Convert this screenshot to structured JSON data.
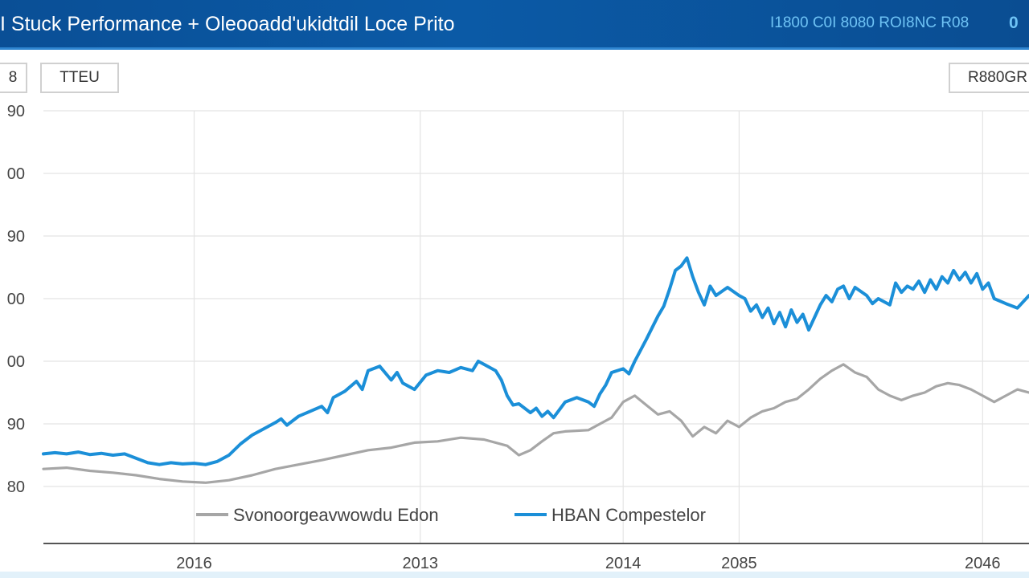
{
  "header": {
    "title": "I Stuck Performance + Oleooadd'ukidtdil Loce Prito",
    "right_link": "I1800 C0I 8080 ROI8NC R08",
    "right_icon_label": "0"
  },
  "controls": {
    "left_button": "8",
    "ticker_button": "TTEU",
    "range_button": "R880GR"
  },
  "colors": {
    "header_bg": "#0a4f96",
    "accent": "#1b8fd8",
    "benchmark": "#a6a6a6",
    "grid": "#e4e4e4"
  },
  "chart_data": {
    "type": "line",
    "title": "",
    "xlabel": "",
    "ylabel": "",
    "ylim": [
      0,
      6
    ],
    "y_ticks": [
      {
        "v": 0,
        "label": "80"
      },
      {
        "v": 1,
        "label": "90"
      },
      {
        "v": 2,
        "label": "00"
      },
      {
        "v": 3,
        "label": "00"
      },
      {
        "v": 4,
        "label": "90"
      },
      {
        "v": 5,
        "label": "00"
      },
      {
        "v": 6,
        "label": "90"
      }
    ],
    "x_ticks": [
      {
        "x": 1.3,
        "label": "2016"
      },
      {
        "x": 3.25,
        "label": "2013"
      },
      {
        "x": 5.0,
        "label": "2014"
      },
      {
        "x": 6.0,
        "label": "2085"
      },
      {
        "x": 8.1,
        "label": "2046"
      }
    ],
    "x_gridlines": [
      1.3,
      3.25,
      5.0,
      6.0,
      8.1
    ],
    "xlim": [
      0,
      8.5
    ],
    "legend_position": "bottom-center",
    "grid": true,
    "series": [
      {
        "name": "HBAN Compestelor",
        "color": "#1b8fd8",
        "points": [
          [
            0.0,
            0.52
          ],
          [
            0.1,
            0.54
          ],
          [
            0.2,
            0.52
          ],
          [
            0.3,
            0.55
          ],
          [
            0.4,
            0.51
          ],
          [
            0.5,
            0.53
          ],
          [
            0.6,
            0.5
          ],
          [
            0.7,
            0.52
          ],
          [
            0.8,
            0.45
          ],
          [
            0.9,
            0.38
          ],
          [
            1.0,
            0.35
          ],
          [
            1.1,
            0.38
          ],
          [
            1.2,
            0.36
          ],
          [
            1.3,
            0.37
          ],
          [
            1.4,
            0.35
          ],
          [
            1.5,
            0.4
          ],
          [
            1.6,
            0.5
          ],
          [
            1.7,
            0.68
          ],
          [
            1.8,
            0.82
          ],
          [
            1.9,
            0.92
          ],
          [
            2.0,
            1.02
          ],
          [
            2.05,
            1.08
          ],
          [
            2.1,
            0.98
          ],
          [
            2.2,
            1.12
          ],
          [
            2.3,
            1.2
          ],
          [
            2.4,
            1.28
          ],
          [
            2.45,
            1.18
          ],
          [
            2.5,
            1.42
          ],
          [
            2.6,
            1.52
          ],
          [
            2.7,
            1.68
          ],
          [
            2.75,
            1.55
          ],
          [
            2.8,
            1.85
          ],
          [
            2.9,
            1.92
          ],
          [
            3.0,
            1.7
          ],
          [
            3.05,
            1.82
          ],
          [
            3.1,
            1.65
          ],
          [
            3.2,
            1.55
          ],
          [
            3.3,
            1.78
          ],
          [
            3.4,
            1.85
          ],
          [
            3.5,
            1.82
          ],
          [
            3.6,
            1.9
          ],
          [
            3.7,
            1.85
          ],
          [
            3.75,
            2.0
          ],
          [
            3.8,
            1.95
          ],
          [
            3.9,
            1.85
          ],
          [
            3.95,
            1.7
          ],
          [
            4.0,
            1.45
          ],
          [
            4.05,
            1.3
          ],
          [
            4.1,
            1.32
          ],
          [
            4.2,
            1.18
          ],
          [
            4.25,
            1.25
          ],
          [
            4.3,
            1.12
          ],
          [
            4.35,
            1.2
          ],
          [
            4.4,
            1.1
          ],
          [
            4.5,
            1.35
          ],
          [
            4.6,
            1.42
          ],
          [
            4.7,
            1.35
          ],
          [
            4.75,
            1.28
          ],
          [
            4.8,
            1.48
          ],
          [
            4.85,
            1.62
          ],
          [
            4.9,
            1.82
          ],
          [
            5.0,
            1.88
          ],
          [
            5.05,
            1.8
          ],
          [
            5.1,
            2.0
          ],
          [
            5.2,
            2.35
          ],
          [
            5.3,
            2.72
          ],
          [
            5.35,
            2.88
          ],
          [
            5.4,
            3.15
          ],
          [
            5.45,
            3.45
          ],
          [
            5.5,
            3.52
          ],
          [
            5.55,
            3.65
          ],
          [
            5.6,
            3.35
          ],
          [
            5.65,
            3.1
          ],
          [
            5.7,
            2.9
          ],
          [
            5.75,
            3.2
          ],
          [
            5.8,
            3.05
          ],
          [
            5.9,
            3.18
          ],
          [
            6.0,
            3.05
          ],
          [
            6.05,
            3.0
          ],
          [
            6.1,
            2.8
          ],
          [
            6.15,
            2.9
          ],
          [
            6.2,
            2.7
          ],
          [
            6.25,
            2.85
          ],
          [
            6.3,
            2.6
          ],
          [
            6.35,
            2.78
          ],
          [
            6.4,
            2.55
          ],
          [
            6.45,
            2.82
          ],
          [
            6.5,
            2.62
          ],
          [
            6.55,
            2.75
          ],
          [
            6.6,
            2.5
          ],
          [
            6.65,
            2.7
          ],
          [
            6.7,
            2.9
          ],
          [
            6.75,
            3.05
          ],
          [
            6.8,
            2.95
          ],
          [
            6.85,
            3.15
          ],
          [
            6.9,
            3.2
          ],
          [
            6.95,
            3.0
          ],
          [
            7.0,
            3.18
          ],
          [
            7.1,
            3.05
          ],
          [
            7.15,
            2.92
          ],
          [
            7.2,
            3.0
          ],
          [
            7.25,
            2.95
          ],
          [
            7.3,
            2.9
          ],
          [
            7.35,
            3.25
          ],
          [
            7.4,
            3.1
          ],
          [
            7.45,
            3.2
          ],
          [
            7.5,
            3.15
          ],
          [
            7.55,
            3.28
          ],
          [
            7.6,
            3.1
          ],
          [
            7.65,
            3.3
          ],
          [
            7.7,
            3.15
          ],
          [
            7.75,
            3.35
          ],
          [
            7.8,
            3.25
          ],
          [
            7.85,
            3.45
          ],
          [
            7.9,
            3.3
          ],
          [
            7.95,
            3.42
          ],
          [
            8.0,
            3.25
          ],
          [
            8.05,
            3.4
          ],
          [
            8.1,
            3.15
          ],
          [
            8.15,
            3.25
          ],
          [
            8.2,
            3.0
          ],
          [
            8.3,
            2.92
          ],
          [
            8.4,
            2.85
          ],
          [
            8.5,
            3.05
          ]
        ]
      },
      {
        "name": "Svonoorgeavwowdu Edon",
        "color": "#a6a6a6",
        "points": [
          [
            0.0,
            0.28
          ],
          [
            0.2,
            0.3
          ],
          [
            0.4,
            0.25
          ],
          [
            0.6,
            0.22
          ],
          [
            0.8,
            0.18
          ],
          [
            1.0,
            0.12
          ],
          [
            1.2,
            0.08
          ],
          [
            1.4,
            0.06
          ],
          [
            1.6,
            0.1
          ],
          [
            1.8,
            0.18
          ],
          [
            2.0,
            0.28
          ],
          [
            2.2,
            0.35
          ],
          [
            2.4,
            0.42
          ],
          [
            2.6,
            0.5
          ],
          [
            2.8,
            0.58
          ],
          [
            3.0,
            0.62
          ],
          [
            3.2,
            0.7
          ],
          [
            3.4,
            0.72
          ],
          [
            3.6,
            0.78
          ],
          [
            3.8,
            0.75
          ],
          [
            4.0,
            0.65
          ],
          [
            4.1,
            0.5
          ],
          [
            4.2,
            0.58
          ],
          [
            4.3,
            0.72
          ],
          [
            4.4,
            0.85
          ],
          [
            4.5,
            0.88
          ],
          [
            4.7,
            0.9
          ],
          [
            4.8,
            1.0
          ],
          [
            4.9,
            1.1
          ],
          [
            5.0,
            1.35
          ],
          [
            5.1,
            1.45
          ],
          [
            5.2,
            1.3
          ],
          [
            5.3,
            1.15
          ],
          [
            5.4,
            1.2
          ],
          [
            5.5,
            1.05
          ],
          [
            5.6,
            0.8
          ],
          [
            5.7,
            0.95
          ],
          [
            5.8,
            0.85
          ],
          [
            5.9,
            1.05
          ],
          [
            6.0,
            0.95
          ],
          [
            6.1,
            1.1
          ],
          [
            6.2,
            1.2
          ],
          [
            6.3,
            1.25
          ],
          [
            6.4,
            1.35
          ],
          [
            6.5,
            1.4
          ],
          [
            6.6,
            1.55
          ],
          [
            6.7,
            1.72
          ],
          [
            6.8,
            1.85
          ],
          [
            6.9,
            1.95
          ],
          [
            7.0,
            1.82
          ],
          [
            7.1,
            1.75
          ],
          [
            7.2,
            1.55
          ],
          [
            7.3,
            1.45
          ],
          [
            7.4,
            1.38
          ],
          [
            7.5,
            1.45
          ],
          [
            7.6,
            1.5
          ],
          [
            7.7,
            1.6
          ],
          [
            7.8,
            1.65
          ],
          [
            7.9,
            1.62
          ],
          [
            8.0,
            1.55
          ],
          [
            8.1,
            1.45
          ],
          [
            8.2,
            1.35
          ],
          [
            8.3,
            1.45
          ],
          [
            8.4,
            1.55
          ],
          [
            8.5,
            1.5
          ]
        ]
      }
    ]
  }
}
